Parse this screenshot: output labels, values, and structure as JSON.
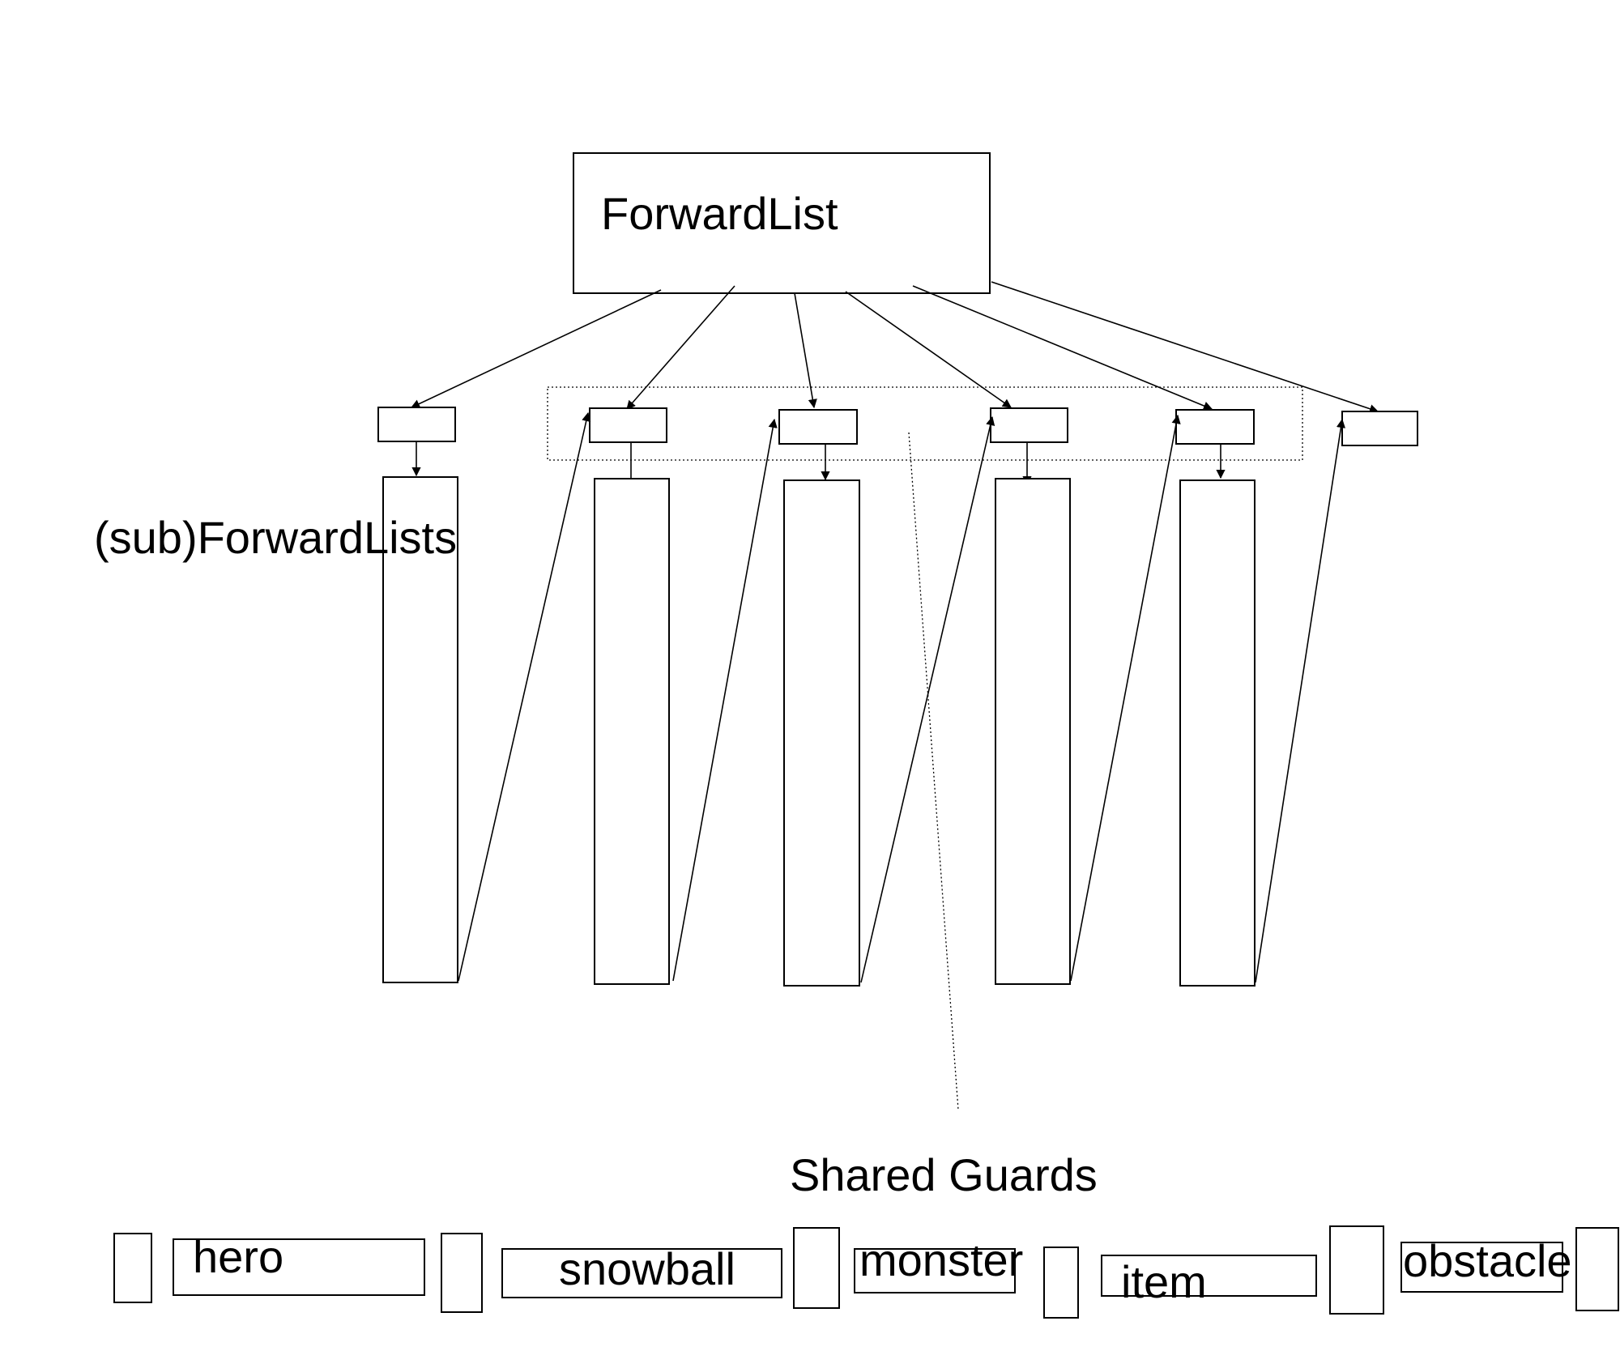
{
  "root": {
    "label": "ForwardList"
  },
  "sublists": {
    "label": "(sub)ForwardLists"
  },
  "shared_guards": {
    "label": "Shared Guards"
  },
  "entities": {
    "hero": "hero",
    "snowball": "snowball",
    "monster": "monster",
    "item": "item",
    "obstacle": "obstacle"
  },
  "colors": {
    "stroke": "#000000",
    "background": "#ffffff"
  }
}
